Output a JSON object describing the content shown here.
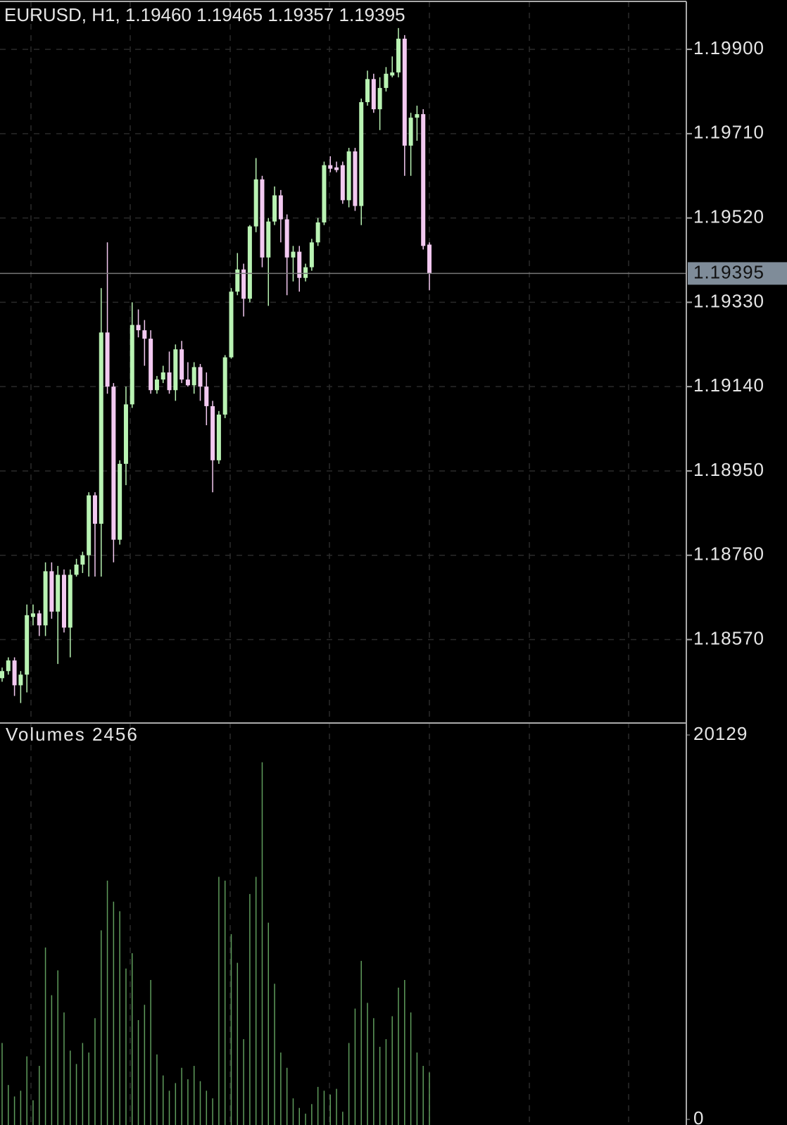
{
  "chart_data": [
    {
      "type": "candlestick",
      "title": "EURUSD, H1, 1.19460 1.19465 1.19357 1.19395",
      "open": [
        1.18483,
        1.18499,
        1.18523,
        1.18467,
        1.18491,
        1.18621,
        1.18629,
        1.18602,
        1.18724,
        1.18633,
        1.18716,
        1.18597,
        1.18716,
        1.18739,
        1.1876,
        1.18895,
        1.18831,
        1.19262,
        1.1914,
        1.18795,
        1.18966,
        1.191,
        1.19279,
        1.19267,
        1.19248,
        1.19132,
        1.19156,
        1.19172,
        1.19132,
        1.19224,
        1.19156,
        1.19143,
        1.19184,
        1.1914,
        1.19096,
        1.18974,
        1.19077,
        1.19206,
        1.19354,
        1.19404,
        1.19338,
        1.19501,
        1.19607,
        1.19431,
        1.19512,
        1.19571,
        1.19517,
        1.19431,
        1.19444,
        1.19385,
        1.19409,
        1.19465,
        1.1951,
        1.19639,
        1.19634,
        1.19639,
        1.1956,
        1.1967,
        1.19547,
        1.19781,
        1.19833,
        1.19765,
        1.19813,
        1.19841,
        1.19848,
        1.19924,
        1.19683,
        1.19746,
        1.19754,
        1.1946
      ],
      "high": [
        1.18507,
        1.1853,
        1.1853,
        1.18499,
        1.18649,
        1.18649,
        1.18636,
        1.18744,
        1.18744,
        1.18736,
        1.18728,
        1.18728,
        1.18752,
        1.18768,
        1.18902,
        1.18902,
        1.19362,
        1.19465,
        1.19148,
        1.18974,
        1.1914,
        1.1933,
        1.19314,
        1.1929,
        1.19267,
        1.19164,
        1.19187,
        1.19219,
        1.19235,
        1.19243,
        1.19195,
        1.19195,
        1.19191,
        1.19172,
        1.19108,
        1.19085,
        1.19211,
        1.19362,
        1.19441,
        1.19417,
        1.19504,
        1.19655,
        1.19615,
        1.1952,
        1.19591,
        1.19583,
        1.19528,
        1.19457,
        1.19457,
        1.19417,
        1.19473,
        1.1952,
        1.19647,
        1.19659,
        1.19647,
        1.19647,
        1.19678,
        1.19678,
        1.19789,
        1.19852,
        1.19845,
        1.19837,
        1.1986,
        1.19884,
        1.19948,
        1.19932,
        1.19757,
        1.19773,
        1.19765,
        1.19465
      ],
      "low": [
        1.18475,
        1.18491,
        1.18443,
        1.18427,
        1.18451,
        1.18602,
        1.18578,
        1.18578,
        1.18617,
        1.18515,
        1.18586,
        1.1853,
        1.18712,
        1.1872,
        1.18712,
        1.18712,
        1.18712,
        1.19124,
        1.18744,
        1.18784,
        1.18918,
        1.19092,
        1.19251,
        1.19187,
        1.19124,
        1.19124,
        1.19148,
        1.19124,
        1.19108,
        1.19148,
        1.1914,
        1.19124,
        1.19108,
        1.19053,
        1.18902,
        1.18966,
        1.19069,
        1.19203,
        1.19346,
        1.19298,
        1.1933,
        1.19488,
        1.19409,
        1.19322,
        1.19504,
        1.19465,
        1.19346,
        1.19377,
        1.19354,
        1.19377,
        1.19401,
        1.19457,
        1.19504,
        1.19623,
        1.19623,
        1.19552,
        1.19544,
        1.19536,
        1.19504,
        1.19773,
        1.19757,
        1.19718,
        1.19805,
        1.19837,
        1.19837,
        1.19615,
        1.19615,
        1.19694,
        1.19449,
        1.19357
      ],
      "close": [
        1.18499,
        1.18523,
        1.18467,
        1.18491,
        1.18625,
        1.18629,
        1.18602,
        1.18724,
        1.18633,
        1.18716,
        1.18597,
        1.18716,
        1.18739,
        1.1876,
        1.18895,
        1.18831,
        1.19262,
        1.1914,
        1.18795,
        1.18966,
        1.191,
        1.19279,
        1.19267,
        1.19248,
        1.19132,
        1.19156,
        1.19172,
        1.19132,
        1.19224,
        1.19156,
        1.19143,
        1.19184,
        1.1914,
        1.19096,
        1.18974,
        1.19077,
        1.19206,
        1.19354,
        1.19404,
        1.19338,
        1.19501,
        1.19607,
        1.19431,
        1.19512,
        1.19571,
        1.19517,
        1.19431,
        1.19444,
        1.19385,
        1.19409,
        1.19465,
        1.1951,
        1.19639,
        1.19631,
        1.19628,
        1.1956,
        1.1967,
        1.19547,
        1.19781,
        1.19833,
        1.19765,
        1.19813,
        1.19845,
        1.19848,
        1.19924,
        1.19683,
        1.19746,
        1.19754,
        1.19457,
        1.19395
      ],
      "up_color": "#b9f3b3",
      "down_color": "#f3c9f1",
      "ylim": [
        1.18382,
        1.20008
      ],
      "yticks": [
        {
          "value": 1.199,
          "label": "1.19900"
        },
        {
          "value": 1.1971,
          "label": "1.19710"
        },
        {
          "value": 1.1952,
          "label": "1.19520"
        },
        {
          "value": 1.1933,
          "label": "1.19330"
        },
        {
          "value": 1.1914,
          "label": "1.19140"
        },
        {
          "value": 1.1895,
          "label": "1.18950"
        },
        {
          "value": 1.1876,
          "label": "1.18760"
        },
        {
          "value": 1.1857,
          "label": "1.18570"
        }
      ],
      "last_price": {
        "value": 1.19395,
        "label": "1.19395"
      },
      "grid": true
    },
    {
      "type": "bar",
      "title": "Volumes 2456",
      "values": [
        4000,
        1800,
        1200,
        1500,
        3300,
        1000,
        2800,
        9000,
        6500,
        7800,
        5600,
        3600,
        2900,
        4000,
        3500,
        5300,
        9900,
        12500,
        11400,
        10900,
        7900,
        8700,
        5200,
        6000,
        7300,
        3400,
        2300,
        1500,
        1900,
        2700,
        2100,
        2800,
        2000,
        1500,
        1100,
        12700,
        12500,
        9700,
        8200,
        4200,
        11800,
        12700,
        18700,
        10300,
        7100,
        3500,
        2700,
        1100,
        600,
        300,
        800,
        1700,
        1500,
        1300,
        1600,
        400,
        4000,
        5800,
        8300,
        6100,
        5300,
        3800,
        4200,
        5400,
        6900,
        7300,
        5600,
        3500,
        2800,
        2456
      ],
      "color": "#5f9c5c",
      "ylim": [
        0,
        20129
      ],
      "yticks": [
        0,
        20129
      ]
    }
  ]
}
